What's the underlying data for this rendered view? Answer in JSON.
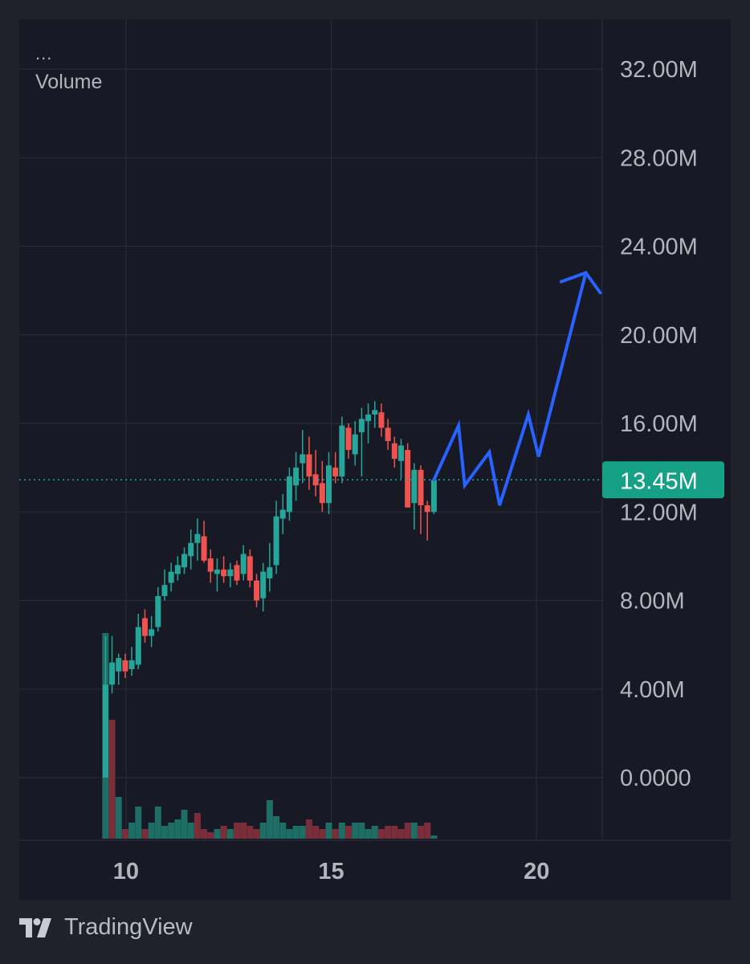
{
  "legend": {
    "menu": "...",
    "indicator": "Volume"
  },
  "branding": {
    "name": "TradingView",
    "icon": "tradingview-logo-icon"
  },
  "colors": {
    "up": "#26a69a",
    "down": "#ef5350",
    "vol_up": "#1f6e66",
    "vol_down": "#7a2e3a",
    "forecast": "#2962ff",
    "last_price_bg": "#16a085",
    "grid": "#2a2e39",
    "axis_text": "#b2b5be"
  },
  "chart_data": {
    "type": "candlestick",
    "y_axis": {
      "ticks": [
        "32.00M",
        "28.00M",
        "24.00M",
        "20.00M",
        "16.00M",
        "12.00M",
        "8.00M",
        "4.00M",
        "0.0000"
      ],
      "range": [
        0,
        32000000
      ]
    },
    "x_axis": {
      "ticks": [
        "10",
        "15",
        "20"
      ],
      "range": [
        7.4,
        21.6
      ]
    },
    "last_value_label": "13.45M",
    "last_value": 13450000,
    "candles": [
      {
        "x": 9.5,
        "o": 0.0,
        "h": 6.4,
        "l": 0.0,
        "c": 4.2
      },
      {
        "x": 9.66,
        "o": 4.2,
        "h": 6.4,
        "l": 3.8,
        "c": 5.2
      },
      {
        "x": 9.82,
        "o": 4.8,
        "h": 5.6,
        "l": 4.2,
        "c": 5.4
      },
      {
        "x": 9.98,
        "o": 5.3,
        "h": 5.6,
        "l": 4.5,
        "c": 4.8
      },
      {
        "x": 10.14,
        "o": 4.9,
        "h": 5.9,
        "l": 4.6,
        "c": 5.3
      },
      {
        "x": 10.3,
        "o": 5.1,
        "h": 7.4,
        "l": 4.9,
        "c": 6.8
      },
      {
        "x": 10.46,
        "o": 7.2,
        "h": 7.6,
        "l": 6.1,
        "c": 6.4
      },
      {
        "x": 10.62,
        "o": 6.4,
        "h": 7.3,
        "l": 5.9,
        "c": 6.7
      },
      {
        "x": 10.78,
        "o": 6.8,
        "h": 8.6,
        "l": 6.6,
        "c": 8.2
      },
      {
        "x": 10.94,
        "o": 8.2,
        "h": 9.4,
        "l": 8.0,
        "c": 8.7
      },
      {
        "x": 11.1,
        "o": 8.8,
        "h": 9.7,
        "l": 8.4,
        "c": 9.3
      },
      {
        "x": 11.26,
        "o": 9.2,
        "h": 10.0,
        "l": 8.9,
        "c": 9.6
      },
      {
        "x": 11.42,
        "o": 9.5,
        "h": 10.4,
        "l": 9.2,
        "c": 10.1
      },
      {
        "x": 11.58,
        "o": 10.0,
        "h": 11.2,
        "l": 9.4,
        "c": 10.6
      },
      {
        "x": 11.74,
        "o": 10.6,
        "h": 11.7,
        "l": 9.8,
        "c": 11.0
      },
      {
        "x": 11.9,
        "o": 10.9,
        "h": 11.6,
        "l": 9.7,
        "c": 9.8
      },
      {
        "x": 12.06,
        "o": 9.9,
        "h": 10.3,
        "l": 8.8,
        "c": 9.3
      },
      {
        "x": 12.22,
        "o": 9.2,
        "h": 9.9,
        "l": 8.4,
        "c": 9.4
      },
      {
        "x": 12.38,
        "o": 9.4,
        "h": 10.0,
        "l": 8.8,
        "c": 9.1
      },
      {
        "x": 12.54,
        "o": 9.1,
        "h": 9.7,
        "l": 8.6,
        "c": 9.4
      },
      {
        "x": 12.7,
        "o": 9.6,
        "h": 9.8,
        "l": 8.7,
        "c": 8.9
      },
      {
        "x": 12.86,
        "o": 9.2,
        "h": 10.5,
        "l": 8.9,
        "c": 10.1
      },
      {
        "x": 13.02,
        "o": 10.0,
        "h": 10.3,
        "l": 8.6,
        "c": 8.9
      },
      {
        "x": 13.18,
        "o": 8.9,
        "h": 9.2,
        "l": 7.7,
        "c": 8.0
      },
      {
        "x": 13.34,
        "o": 8.1,
        "h": 9.7,
        "l": 7.5,
        "c": 9.3
      },
      {
        "x": 13.5,
        "o": 9.0,
        "h": 10.6,
        "l": 8.4,
        "c": 9.5
      },
      {
        "x": 13.66,
        "o": 9.6,
        "h": 12.5,
        "l": 9.2,
        "c": 11.8
      },
      {
        "x": 13.82,
        "o": 11.7,
        "h": 12.8,
        "l": 11.0,
        "c": 12.1
      },
      {
        "x": 13.98,
        "o": 12.0,
        "h": 14.0,
        "l": 11.6,
        "c": 13.6
      },
      {
        "x": 14.14,
        "o": 13.2,
        "h": 14.7,
        "l": 12.5,
        "c": 14.0
      },
      {
        "x": 14.3,
        "o": 14.2,
        "h": 15.7,
        "l": 13.3,
        "c": 14.6
      },
      {
        "x": 14.46,
        "o": 14.6,
        "h": 15.4,
        "l": 13.0,
        "c": 13.6
      },
      {
        "x": 14.62,
        "o": 13.7,
        "h": 14.8,
        "l": 12.7,
        "c": 13.2
      },
      {
        "x": 14.78,
        "o": 13.3,
        "h": 14.3,
        "l": 12.0,
        "c": 12.4
      },
      {
        "x": 14.94,
        "o": 12.4,
        "h": 14.7,
        "l": 11.9,
        "c": 14.1
      },
      {
        "x": 15.1,
        "o": 14.0,
        "h": 14.7,
        "l": 13.3,
        "c": 13.6
      },
      {
        "x": 15.26,
        "o": 13.6,
        "h": 16.3,
        "l": 13.3,
        "c": 15.9
      },
      {
        "x": 15.42,
        "o": 15.8,
        "h": 16.0,
        "l": 14.4,
        "c": 14.8
      },
      {
        "x": 15.58,
        "o": 14.6,
        "h": 16.1,
        "l": 14.1,
        "c": 15.5
      },
      {
        "x": 15.74,
        "o": 15.6,
        "h": 16.7,
        "l": 13.6,
        "c": 16.2
      },
      {
        "x": 15.9,
        "o": 16.1,
        "h": 16.9,
        "l": 15.1,
        "c": 16.4
      },
      {
        "x": 16.06,
        "o": 16.4,
        "h": 17.0,
        "l": 15.8,
        "c": 16.6
      },
      {
        "x": 16.22,
        "o": 16.5,
        "h": 16.9,
        "l": 15.4,
        "c": 15.8
      },
      {
        "x": 16.38,
        "o": 15.8,
        "h": 16.2,
        "l": 14.8,
        "c": 15.2
      },
      {
        "x": 16.54,
        "o": 15.1,
        "h": 15.4,
        "l": 14.0,
        "c": 14.4
      },
      {
        "x": 16.7,
        "o": 14.3,
        "h": 15.3,
        "l": 13.5,
        "c": 15.0
      },
      {
        "x": 16.86,
        "o": 14.8,
        "h": 15.1,
        "l": 12.2,
        "c": 12.2
      },
      {
        "x": 17.02,
        "o": 12.4,
        "h": 14.2,
        "l": 11.2,
        "c": 13.9
      },
      {
        "x": 17.18,
        "o": 13.9,
        "h": 14.1,
        "l": 11.0,
        "c": 12.3
      },
      {
        "x": 17.34,
        "o": 12.3,
        "h": 12.5,
        "l": 10.7,
        "c": 12.0
      },
      {
        "x": 17.5,
        "o": 12.0,
        "h": 13.5,
        "l": 11.9,
        "c": 13.45
      }
    ],
    "volume": [
      {
        "x": 9.5,
        "v": 6.4,
        "up": true
      },
      {
        "x": 9.66,
        "v": 3.7,
        "up": false
      },
      {
        "x": 9.82,
        "v": 1.3,
        "up": true
      },
      {
        "x": 9.98,
        "v": 0.3,
        "up": false
      },
      {
        "x": 10.14,
        "v": 0.5,
        "up": true
      },
      {
        "x": 10.3,
        "v": 1.0,
        "up": true
      },
      {
        "x": 10.46,
        "v": 0.3,
        "up": false
      },
      {
        "x": 10.62,
        "v": 0.5,
        "up": true
      },
      {
        "x": 10.78,
        "v": 1.0,
        "up": true
      },
      {
        "x": 10.94,
        "v": 0.4,
        "up": true
      },
      {
        "x": 11.1,
        "v": 0.5,
        "up": true
      },
      {
        "x": 11.26,
        "v": 0.6,
        "up": true
      },
      {
        "x": 11.42,
        "v": 0.9,
        "up": true
      },
      {
        "x": 11.58,
        "v": 0.5,
        "up": true
      },
      {
        "x": 11.74,
        "v": 0.8,
        "up": false
      },
      {
        "x": 11.9,
        "v": 0.3,
        "up": false
      },
      {
        "x": 12.06,
        "v": 0.2,
        "up": false
      },
      {
        "x": 12.22,
        "v": 0.3,
        "up": true
      },
      {
        "x": 12.38,
        "v": 0.4,
        "up": false
      },
      {
        "x": 12.54,
        "v": 0.3,
        "up": true
      },
      {
        "x": 12.7,
        "v": 0.5,
        "up": false
      },
      {
        "x": 12.86,
        "v": 0.5,
        "up": false
      },
      {
        "x": 13.02,
        "v": 0.4,
        "up": false
      },
      {
        "x": 13.18,
        "v": 0.3,
        "up": false
      },
      {
        "x": 13.34,
        "v": 0.5,
        "up": true
      },
      {
        "x": 13.5,
        "v": 1.2,
        "up": true
      },
      {
        "x": 13.66,
        "v": 0.7,
        "up": true
      },
      {
        "x": 13.82,
        "v": 0.5,
        "up": true
      },
      {
        "x": 13.98,
        "v": 0.3,
        "up": true
      },
      {
        "x": 14.14,
        "v": 0.4,
        "up": true
      },
      {
        "x": 14.3,
        "v": 0.4,
        "up": true
      },
      {
        "x": 14.46,
        "v": 0.6,
        "up": false
      },
      {
        "x": 14.62,
        "v": 0.4,
        "up": false
      },
      {
        "x": 14.78,
        "v": 0.3,
        "up": false
      },
      {
        "x": 14.94,
        "v": 0.5,
        "up": true
      },
      {
        "x": 15.1,
        "v": 0.3,
        "up": false
      },
      {
        "x": 15.26,
        "v": 0.5,
        "up": true
      },
      {
        "x": 15.42,
        "v": 0.4,
        "up": false
      },
      {
        "x": 15.58,
        "v": 0.5,
        "up": true
      },
      {
        "x": 15.74,
        "v": 0.5,
        "up": true
      },
      {
        "x": 15.9,
        "v": 0.3,
        "up": true
      },
      {
        "x": 16.06,
        "v": 0.4,
        "up": true
      },
      {
        "x": 16.22,
        "v": 0.3,
        "up": false
      },
      {
        "x": 16.38,
        "v": 0.4,
        "up": false
      },
      {
        "x": 16.54,
        "v": 0.4,
        "up": false
      },
      {
        "x": 16.7,
        "v": 0.3,
        "up": false
      },
      {
        "x": 16.86,
        "v": 0.5,
        "up": false
      },
      {
        "x": 17.02,
        "v": 0.5,
        "up": true
      },
      {
        "x": 17.18,
        "v": 0.4,
        "up": false
      },
      {
        "x": 17.34,
        "v": 0.5,
        "up": false
      },
      {
        "x": 17.5,
        "v": 0.1,
        "up": true
      }
    ],
    "forecast_path": [
      {
        "x": 17.5,
        "y": 13.45
      },
      {
        "x": 18.1,
        "y": 15.9
      },
      {
        "x": 18.25,
        "y": 13.2
      },
      {
        "x": 18.85,
        "y": 14.7
      },
      {
        "x": 19.1,
        "y": 12.3
      },
      {
        "x": 19.8,
        "y": 16.4
      },
      {
        "x": 20.05,
        "y": 14.5
      },
      {
        "x": 21.2,
        "y": 22.8
      }
    ],
    "forecast_arrowhead": [
      {
        "x": 20.6,
        "y": 22.4
      },
      {
        "x": 21.2,
        "y": 22.8
      },
      {
        "x": 21.55,
        "y": 21.9
      }
    ]
  }
}
